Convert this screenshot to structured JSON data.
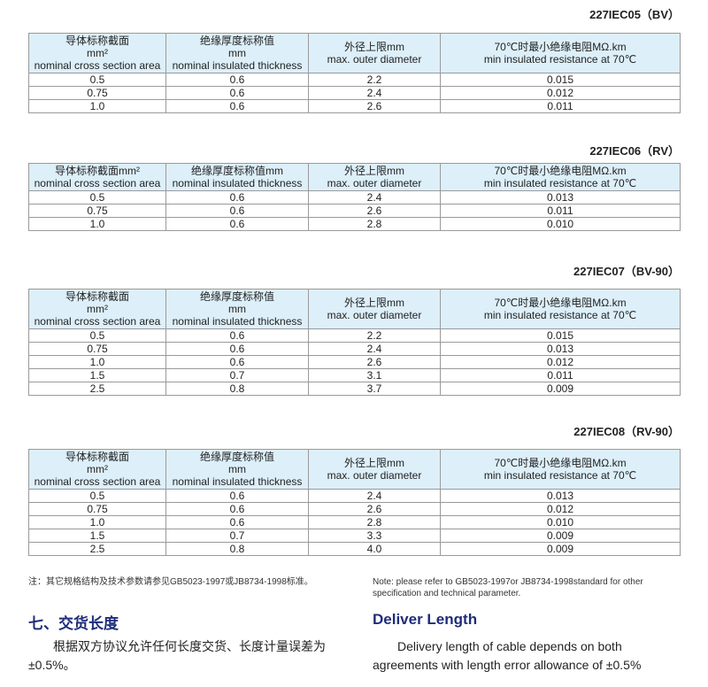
{
  "tables": [
    {
      "title": "227IEC05（BV）",
      "three_line": true,
      "headers": [
        [
          "导体标称截面",
          "mm²",
          "nominal cross section area"
        ],
        [
          "绝缘厚度标称值",
          "mm",
          "nominal insulated thickness"
        ],
        [
          "外径上限mm",
          "max. outer diameter"
        ],
        [
          "70℃时最小绝缘电阻MΩ.km",
          "min insulated resistance at 70℃"
        ]
      ],
      "rows": [
        [
          "0.5",
          "0.6",
          "2.2",
          "0.015"
        ],
        [
          "0.75",
          "0.6",
          "2.4",
          "0.012"
        ],
        [
          "1.0",
          "0.6",
          "2.6",
          "0.011"
        ]
      ]
    },
    {
      "title": "227IEC06（RV）",
      "three_line": false,
      "headers": [
        [
          "导体标称截面mm²",
          "nominal cross section area"
        ],
        [
          "绝缘厚度标称值mm",
          "nominal insulated thickness"
        ],
        [
          "外径上限mm",
          "max. outer diameter"
        ],
        [
          "70℃时最小绝缘电阻MΩ.km",
          "min insulated resistance at 70℃"
        ]
      ],
      "rows": [
        [
          "0.5",
          "0.6",
          "2.4",
          "0.013"
        ],
        [
          "0.75",
          "0.6",
          "2.6",
          "0.011"
        ],
        [
          "1.0",
          "0.6",
          "2.8",
          "0.010"
        ]
      ]
    },
    {
      "title": "227IEC07（BV-90）",
      "three_line": true,
      "headers": [
        [
          "导体标称截面",
          "mm²",
          "nominal cross section area"
        ],
        [
          "绝缘厚度标称值",
          "mm",
          "nominal insulated thickness"
        ],
        [
          "外径上限mm",
          "max. outer diameter"
        ],
        [
          "70℃时最小绝缘电阻MΩ.km",
          "min insulated resistance at 70℃"
        ]
      ],
      "rows": [
        [
          "0.5",
          "0.6",
          "2.2",
          "0.015"
        ],
        [
          "0.75",
          "0.6",
          "2.4",
          "0.013"
        ],
        [
          "1.0",
          "0.6",
          "2.6",
          "0.012"
        ],
        [
          "1.5",
          "0.7",
          "3.1",
          "0.011"
        ],
        [
          "2.5",
          "0.8",
          "3.7",
          "0.009"
        ]
      ]
    },
    {
      "title": "227IEC08（RV-90）",
      "three_line": true,
      "headers": [
        [
          "导体标称截面",
          "mm²",
          "nominal cross section area"
        ],
        [
          "绝缘厚度标称值",
          "mm",
          "nominal insulated thickness"
        ],
        [
          "外径上限mm",
          "max. outer diameter"
        ],
        [
          "70℃时最小绝缘电阻MΩ.km",
          "min insulated resistance at 70℃"
        ]
      ],
      "rows": [
        [
          "0.5",
          "0.6",
          "2.4",
          "0.013"
        ],
        [
          "0.75",
          "0.6",
          "2.6",
          "0.012"
        ],
        [
          "1.0",
          "0.6",
          "2.8",
          "0.010"
        ],
        [
          "1.5",
          "0.7",
          "3.3",
          "0.009"
        ],
        [
          "2.5",
          "0.8",
          "4.0",
          "0.009"
        ]
      ]
    }
  ],
  "note_cn": "注：其它规格结构及技术参数请参见GB5023-1997或JB8734-1998标准。",
  "note_en": "Note: please refer to GB5023-1997or JB8734-1998standard for other specification and technical parameter.",
  "heading_cn": "七、交货长度",
  "heading_en": "Deliver Length",
  "body_cn": "根据双方协议允许任何长度交货、长度计量误差为±0.5%。",
  "body_en": "Delivery length of cable depends on both agreements with length error allowance of ±0.5%",
  "colors": {
    "header_bg": "#ddeff9",
    "heading": "#1f2d7a"
  }
}
